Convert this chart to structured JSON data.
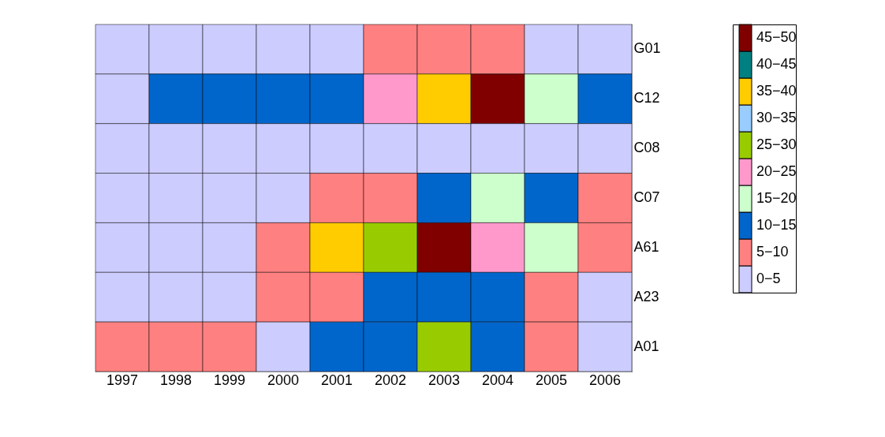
{
  "chart_data": {
    "type": "heatmap",
    "categories": [
      "1997",
      "1998",
      "1999",
      "2000",
      "2001",
      "2002",
      "2003",
      "2004",
      "2005",
      "2006"
    ],
    "y_categories": [
      "G01",
      "C12",
      "C08",
      "C07",
      "A61",
      "A23",
      "A01"
    ],
    "cells": [
      [
        2.5,
        2.5,
        2.5,
        2.5,
        2.5,
        7.5,
        7.5,
        7.5,
        2.5,
        2.5
      ],
      [
        2.5,
        12.5,
        12.5,
        12.5,
        12.5,
        22.5,
        37.5,
        47.5,
        17.5,
        12.5
      ],
      [
        2.5,
        2.5,
        2.5,
        2.5,
        2.5,
        2.5,
        2.5,
        2.5,
        2.5,
        2.5
      ],
      [
        2.5,
        2.5,
        2.5,
        2.5,
        7.5,
        7.5,
        12.5,
        17.5,
        12.5,
        7.5
      ],
      [
        2.5,
        2.5,
        2.5,
        7.5,
        37.5,
        27.5,
        47.5,
        22.5,
        17.5,
        7.5
      ],
      [
        2.5,
        2.5,
        2.5,
        7.5,
        7.5,
        12.5,
        12.5,
        12.5,
        7.5,
        2.5
      ],
      [
        7.5,
        7.5,
        7.5,
        2.5,
        12.5,
        12.5,
        27.5,
        12.5,
        7.5,
        2.5
      ]
    ],
    "clim": [
      0,
      50
    ],
    "cticks": [
      {
        "value": 2.5,
        "label": "0−5"
      },
      {
        "value": 7.5,
        "label": "5−10"
      },
      {
        "value": 12.5,
        "label": "10−15"
      },
      {
        "value": 17.5,
        "label": "15−20"
      },
      {
        "value": 22.5,
        "label": "20−25"
      },
      {
        "value": 27.5,
        "label": "25−30"
      },
      {
        "value": 32.5,
        "label": "30−35"
      },
      {
        "value": 37.5,
        "label": "35−40"
      },
      {
        "value": 42.5,
        "label": "40−45"
      },
      {
        "value": 47.5,
        "label": "45−50"
      }
    ],
    "colors": [
      "#ccccff",
      "#ff8080",
      "#0066cc",
      "#ccffcc",
      "#ff99cc",
      "#99cc00",
      "#99ccff",
      "#ffcc00",
      "#008080",
      "#800000"
    ]
  }
}
